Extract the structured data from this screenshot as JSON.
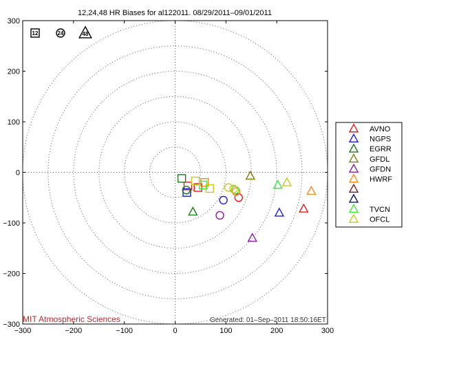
{
  "chart_data": {
    "type": "scatter",
    "title": "12,24,48 HR Biases for al122011. 08/29/2011–09/01/2011",
    "xlim": [
      -300,
      300
    ],
    "ylim": [
      -300,
      300
    ],
    "xticks": [
      -300,
      -200,
      -100,
      0,
      100,
      200,
      300
    ],
    "yticks": [
      300,
      200,
      100,
      0,
      -100,
      -200,
      -300
    ],
    "range_rings": [
      50,
      100,
      150,
      200,
      250,
      300
    ],
    "marker_key": [
      {
        "label": "12",
        "shape": "square"
      },
      {
        "label": "24",
        "shape": "circle"
      },
      {
        "label": "48",
        "shape": "triangle"
      }
    ],
    "series": [
      {
        "name": "AVNO",
        "color": "#e41a1c",
        "shape": "triangle",
        "points": [
          {
            "hr": 12,
            "x": 25,
            "y": -27
          },
          {
            "hr": 12,
            "x": 45,
            "y": -30
          },
          {
            "hr": 24,
            "x": 125,
            "y": -50
          },
          {
            "hr": 48,
            "x": 253,
            "y": -72
          }
        ]
      },
      {
        "name": "NGPS",
        "color": "#1a1ad6",
        "shape": "triangle",
        "points": [
          {
            "hr": 12,
            "x": 23,
            "y": -40
          },
          {
            "hr": 24,
            "x": 95,
            "y": -55
          },
          {
            "hr": 48,
            "x": 205,
            "y": -80
          }
        ]
      },
      {
        "name": "EGRR",
        "color": "#1b7a1b",
        "shape": "triangle",
        "points": [
          {
            "hr": 12,
            "x": 13,
            "y": -12
          },
          {
            "hr": 24,
            "x": 22,
            "y": -35
          },
          {
            "hr": 48,
            "x": 35,
            "y": -78
          }
        ]
      },
      {
        "name": "GFDL",
        "color": "#7a7a0a",
        "shape": "triangle",
        "points": [
          {
            "hr": 48,
            "x": 148,
            "y": -7
          }
        ]
      },
      {
        "name": "GFDN",
        "color": "#8a1aa6",
        "shape": "triangle",
        "points": [
          {
            "hr": 24,
            "x": 88,
            "y": -85
          },
          {
            "hr": 48,
            "x": 152,
            "y": -130
          }
        ]
      },
      {
        "name": "HWRF",
        "color": "#f28c1c",
        "shape": "triangle",
        "points": [
          {
            "hr": 12,
            "x": 58,
            "y": -20
          },
          {
            "hr": 24,
            "x": 120,
            "y": -38
          },
          {
            "hr": 48,
            "x": 268,
            "y": -37
          }
        ]
      },
      {
        "name": "",
        "color": "#7a1a1a",
        "shape": "triangle",
        "points": []
      },
      {
        "name": "",
        "color": "#10106a",
        "shape": "triangle",
        "points": []
      },
      {
        "name": "TVCN",
        "color": "#3ce63c",
        "shape": "triangle",
        "points": [
          {
            "hr": 12,
            "x": 55,
            "y": -25
          },
          {
            "hr": 24,
            "x": 118,
            "y": -35
          },
          {
            "hr": 48,
            "x": 202,
            "y": -25
          }
        ]
      },
      {
        "name": "OFCL",
        "color": "#c8c81c",
        "shape": "triangle",
        "points": [
          {
            "hr": 12,
            "x": 40,
            "y": -17
          },
          {
            "hr": 12,
            "x": 68,
            "y": -32
          },
          {
            "hr": 24,
            "x": 105,
            "y": -30
          },
          {
            "hr": 24,
            "x": 115,
            "y": -33
          },
          {
            "hr": 48,
            "x": 220,
            "y": -20
          }
        ]
      }
    ]
  },
  "footer": {
    "credit": "MIT Atmospheric Sciences",
    "generated": "Generated: 01–Sep–2011 18:50:16ET"
  }
}
